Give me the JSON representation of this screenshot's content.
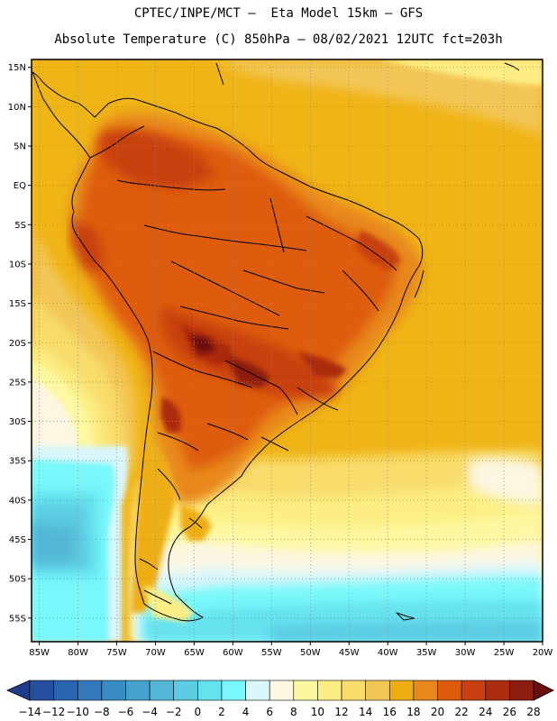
{
  "header": {
    "line1": "CPTEC/INPE/MCT –  Eta Model 15km – GFS",
    "line2": "Absolute Temperature (C) 850hPa – 08/02/2021 12UTC fct=203h"
  },
  "map": {
    "region": "South America",
    "lon_labels": [
      "85W",
      "80W",
      "75W",
      "70W",
      "65W",
      "60W",
      "55W",
      "50W",
      "45W",
      "40W",
      "35W",
      "30W",
      "25W",
      "20W"
    ],
    "lat_labels": [
      "15N",
      "10N",
      "5N",
      "EQ",
      "5S",
      "10S",
      "15S",
      "20S",
      "25S",
      "30S",
      "35S",
      "40S",
      "45S",
      "50S",
      "55S"
    ],
    "lon_range_deg": [
      -86,
      -20
    ],
    "lat_range_deg": [
      -58,
      16
    ]
  },
  "colorbar": {
    "labels": [
      "-14",
      "-12",
      "-10",
      "-8",
      "-6",
      "-4",
      "-2",
      "0",
      "2",
      "4",
      "6",
      "8",
      "10",
      "12",
      "14",
      "16",
      "18",
      "20",
      "22",
      "24",
      "26",
      "28"
    ],
    "colors": [
      "#1e3c8c",
      "#24509e",
      "#2a64b0",
      "#3278bc",
      "#3a8cc4",
      "#45a2cc",
      "#52b8d6",
      "#5ccce2",
      "#66e2ee",
      "#78f8fa",
      "#d8f6fc",
      "#fcf6e2",
      "#fcf8a2",
      "#fcee84",
      "#f8dc6c",
      "#f2c656",
      "#eeae12",
      "#e8881c",
      "#de5c0c",
      "#c84010",
      "#ac2c10",
      "#8c1e10",
      "#6a1010"
    ]
  }
}
